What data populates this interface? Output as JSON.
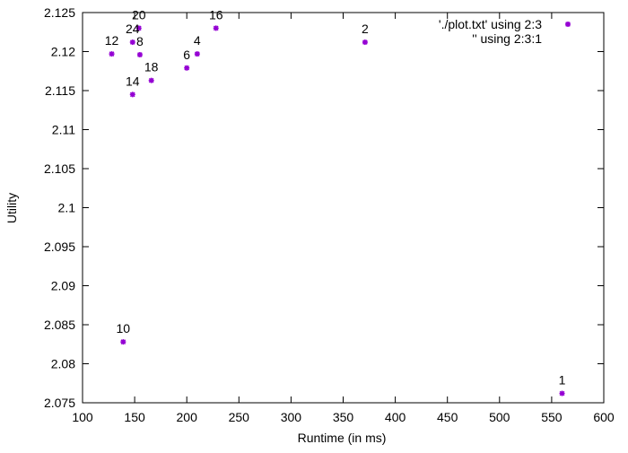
{
  "chart_data": {
    "type": "scatter",
    "xlabel": "Runtime (in ms)",
    "ylabel": "Utility",
    "xlim": [
      100,
      600
    ],
    "ylim": [
      2.075,
      2.125
    ],
    "x_ticks": [
      "100",
      "150",
      "200",
      "250",
      "300",
      "350",
      "400",
      "450",
      "500",
      "550",
      "600"
    ],
    "y_ticks": [
      "2.075",
      "2.08",
      "2.085",
      "2.09",
      "2.095",
      "2.1",
      "2.105",
      "2.11",
      "2.115",
      "2.12",
      "2.125"
    ],
    "grid": false,
    "legend_position": "top-right",
    "series": [
      {
        "name": "'./plot.txt' using 2:3",
        "color": "#9400d3",
        "points": [
          {
            "x": 560,
            "y": 2.0762,
            "label": "1"
          },
          {
            "x": 371,
            "y": 2.1212,
            "label": "2"
          },
          {
            "x": 210,
            "y": 2.1197,
            "label": "4"
          },
          {
            "x": 200,
            "y": 2.1179,
            "label": "6"
          },
          {
            "x": 155,
            "y": 2.1196,
            "label": "8"
          },
          {
            "x": 139,
            "y": 2.0828,
            "label": "10"
          },
          {
            "x": 128,
            "y": 2.1197,
            "label": "12"
          },
          {
            "x": 148,
            "y": 2.1145,
            "label": "14"
          },
          {
            "x": 228,
            "y": 2.123,
            "label": "16"
          },
          {
            "x": 166,
            "y": 2.1163,
            "label": "18"
          },
          {
            "x": 154,
            "y": 2.123,
            "label": "20"
          },
          {
            "x": 148,
            "y": 2.1212,
            "label": "24"
          }
        ]
      },
      {
        "name": "'' using 2:3:1",
        "color": "#000000",
        "points": []
      }
    ]
  }
}
